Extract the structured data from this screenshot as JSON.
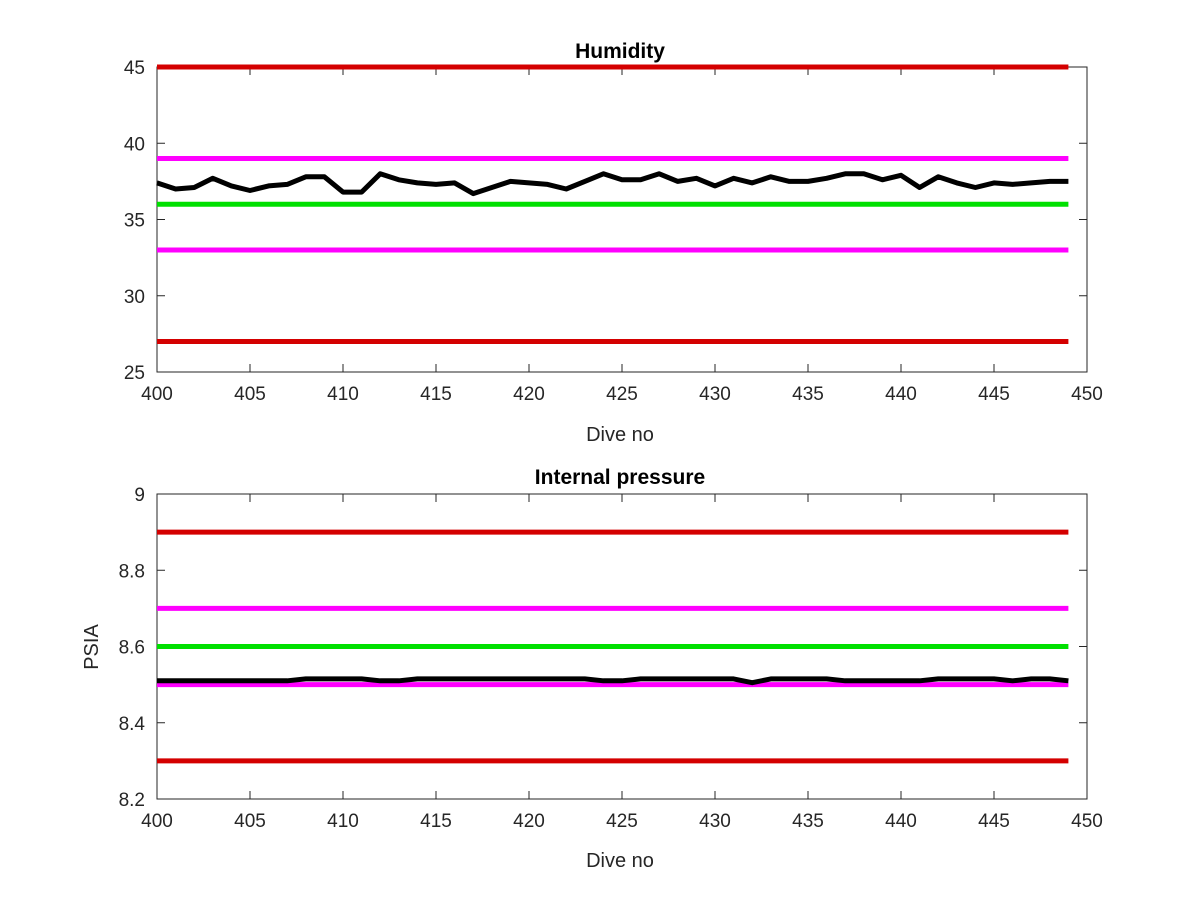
{
  "chart_data": [
    {
      "type": "line",
      "title": "Humidity",
      "xlabel": "Dive no",
      "ylabel": "",
      "xlim": [
        400,
        450
      ],
      "ylim": [
        25,
        45
      ],
      "xticks": [
        400,
        405,
        410,
        415,
        420,
        425,
        430,
        435,
        440,
        445,
        450
      ],
      "yticks": [
        25,
        30,
        35,
        40,
        45
      ],
      "grid": false,
      "legend": "none",
      "reference_lines": [
        {
          "y": 45,
          "color": "#d40000"
        },
        {
          "y": 39,
          "color": "#ff00ff"
        },
        {
          "y": 36,
          "color": "#00e000"
        },
        {
          "y": 33,
          "color": "#ff00ff"
        },
        {
          "y": 27,
          "color": "#d40000"
        }
      ],
      "series": [
        {
          "color": "#000000",
          "x": [
            400,
            401,
            402,
            403,
            404,
            405,
            406,
            407,
            408,
            409,
            410,
            411,
            412,
            413,
            414,
            415,
            416,
            417,
            418,
            419,
            420,
            421,
            422,
            423,
            424,
            425,
            426,
            427,
            428,
            429,
            430,
            431,
            432,
            433,
            434,
            435,
            436,
            437,
            438,
            439,
            440,
            441,
            442,
            443,
            444,
            445,
            446,
            447,
            448,
            449
          ],
          "values": [
            37.4,
            37.0,
            37.1,
            37.7,
            37.2,
            36.9,
            37.2,
            37.3,
            37.8,
            37.8,
            36.8,
            36.8,
            38.0,
            37.6,
            37.4,
            37.3,
            37.4,
            36.7,
            37.1,
            37.5,
            37.4,
            37.3,
            37.0,
            37.5,
            38.0,
            37.6,
            37.6,
            38.0,
            37.5,
            37.7,
            37.2,
            37.7,
            37.4,
            37.8,
            37.5,
            37.5,
            37.7,
            38.0,
            38.0,
            37.6,
            37.9,
            37.1,
            37.8,
            37.4,
            37.1,
            37.4,
            37.3,
            37.4,
            37.5,
            37.5
          ]
        }
      ]
    },
    {
      "type": "line",
      "title": "Internal pressure",
      "xlabel": "Dive no",
      "ylabel": "PSIA",
      "xlim": [
        400,
        450
      ],
      "ylim": [
        8.2,
        9
      ],
      "xticks": [
        400,
        405,
        410,
        415,
        420,
        425,
        430,
        435,
        440,
        445,
        450
      ],
      "yticks": [
        8.2,
        8.4,
        8.6,
        8.8,
        9
      ],
      "grid": false,
      "legend": "none",
      "reference_lines": [
        {
          "y": 8.9,
          "color": "#d40000"
        },
        {
          "y": 8.7,
          "color": "#ff00ff"
        },
        {
          "y": 8.6,
          "color": "#00e000"
        },
        {
          "y": 8.5,
          "color": "#ff00ff"
        },
        {
          "y": 8.3,
          "color": "#d40000"
        }
      ],
      "series": [
        {
          "color": "#000000",
          "x": [
            400,
            401,
            402,
            403,
            404,
            405,
            406,
            407,
            408,
            409,
            410,
            411,
            412,
            413,
            414,
            415,
            416,
            417,
            418,
            419,
            420,
            421,
            422,
            423,
            424,
            425,
            426,
            427,
            428,
            429,
            430,
            431,
            432,
            433,
            434,
            435,
            436,
            437,
            438,
            439,
            440,
            441,
            442,
            443,
            444,
            445,
            446,
            447,
            448,
            449
          ],
          "values": [
            8.51,
            8.51,
            8.51,
            8.51,
            8.51,
            8.51,
            8.51,
            8.51,
            8.515,
            8.515,
            8.515,
            8.515,
            8.51,
            8.51,
            8.515,
            8.515,
            8.515,
            8.515,
            8.515,
            8.515,
            8.515,
            8.515,
            8.515,
            8.515,
            8.51,
            8.51,
            8.515,
            8.515,
            8.515,
            8.515,
            8.515,
            8.515,
            8.505,
            8.515,
            8.515,
            8.515,
            8.515,
            8.51,
            8.51,
            8.51,
            8.51,
            8.51,
            8.515,
            8.515,
            8.515,
            8.515,
            8.51,
            8.515,
            8.515,
            8.51
          ]
        }
      ]
    }
  ]
}
